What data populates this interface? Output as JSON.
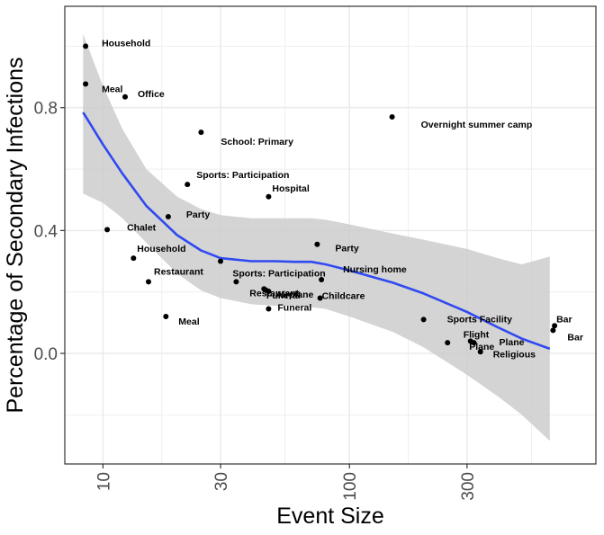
{
  "chart_data": {
    "type": "scatter",
    "title": "",
    "xlabel": "Event Size",
    "ylabel": "Percentage of Secondary Infections",
    "x_scale": "log10",
    "xlim": [
      7.0,
      1000
    ],
    "ylim": [
      -0.36,
      1.13
    ],
    "x_ticks": [
      10,
      30,
      100,
      300
    ],
    "x_tick_labels": [
      "10",
      "30",
      "100",
      "300"
    ],
    "y_ticks": [
      0.0,
      0.4,
      0.8
    ],
    "y_tick_labels": [
      "0.0",
      "0.4",
      "0.8"
    ],
    "grid": true,
    "points": [
      {
        "x": 8.5,
        "y": 1.0,
        "label": "Household"
      },
      {
        "x": 8.5,
        "y": 0.877,
        "label": "Meal"
      },
      {
        "x": 12.3,
        "y": 0.835,
        "label": "Office"
      },
      {
        "x": 25,
        "y": 0.72,
        "label": "School: Primary"
      },
      {
        "x": 22,
        "y": 0.55,
        "label": "Sports: Participation"
      },
      {
        "x": 47,
        "y": 0.51,
        "label": "Hospital"
      },
      {
        "x": 18.4,
        "y": 0.445,
        "label": "Party"
      },
      {
        "x": 10.4,
        "y": 0.403,
        "label": "Chalet"
      },
      {
        "x": 149,
        "y": 0.77,
        "label": "Overnight summer camp"
      },
      {
        "x": 74,
        "y": 0.355,
        "label": "Party"
      },
      {
        "x": 13.3,
        "y": 0.31,
        "label": "Household"
      },
      {
        "x": 30,
        "y": 0.3,
        "label": ""
      },
      {
        "x": 77,
        "y": 0.24,
        "label": "Nursing home"
      },
      {
        "x": 15.3,
        "y": 0.233,
        "label": "Restaurant"
      },
      {
        "x": 34.7,
        "y": 0.233,
        "label": "Sports: Participation"
      },
      {
        "x": 45,
        "y": 0.21,
        "label": "Restaurant"
      },
      {
        "x": 46,
        "y": 0.205,
        "label": "Funeral"
      },
      {
        "x": 47,
        "y": 0.202,
        "label": "Airplane"
      },
      {
        "x": 76,
        "y": 0.18,
        "label": "Childcare"
      },
      {
        "x": 47,
        "y": 0.145,
        "label": "Funeral"
      },
      {
        "x": 18.0,
        "y": 0.12,
        "label": "Meal"
      },
      {
        "x": 200,
        "y": 0.11,
        "label": "Sports Facility"
      },
      {
        "x": 250,
        "y": 0.035,
        "label": "Plane"
      },
      {
        "x": 310,
        "y": 0.04,
        "label": "Flight"
      },
      {
        "x": 320,
        "y": 0.035,
        "label": "Plane"
      },
      {
        "x": 340,
        "y": 0.005,
        "label": "Religious"
      },
      {
        "x": 680,
        "y": 0.09,
        "label": "Bar"
      },
      {
        "x": 670,
        "y": 0.075,
        "label": "Bar"
      }
    ],
    "smooth_line": {
      "color": "#3049f0",
      "x": [
        8.3,
        10,
        12,
        15,
        20,
        25,
        30,
        40,
        50,
        60,
        70,
        80,
        100,
        150,
        200,
        300,
        400,
        500,
        650
      ],
      "y": [
        0.785,
        0.68,
        0.585,
        0.48,
        0.385,
        0.335,
        0.31,
        0.3,
        0.3,
        0.298,
        0.298,
        0.29,
        0.27,
        0.23,
        0.195,
        0.135,
        0.085,
        0.048,
        0.015
      ],
      "ci_lower": [
        0.52,
        0.49,
        0.44,
        0.36,
        0.26,
        0.205,
        0.18,
        0.16,
        0.155,
        0.155,
        0.15,
        0.145,
        0.12,
        0.07,
        0.02,
        -0.07,
        -0.14,
        -0.2,
        -0.285
      ],
      "ci_upper": [
        1.04,
        0.87,
        0.73,
        0.6,
        0.51,
        0.47,
        0.45,
        0.44,
        0.44,
        0.44,
        0.44,
        0.435,
        0.42,
        0.39,
        0.37,
        0.34,
        0.31,
        0.29,
        0.315
      ]
    },
    "colors": {
      "points": "#000000",
      "ribbon": "#cccccc",
      "panel_border": "#333333",
      "grid": "#ebebeb"
    }
  }
}
